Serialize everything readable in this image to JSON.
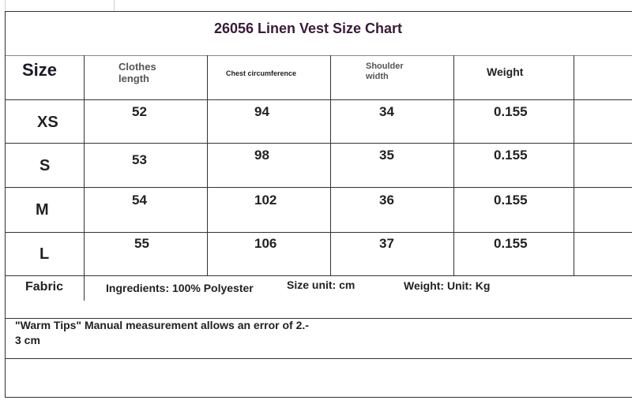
{
  "title": "26056 Linen Vest Size Chart",
  "headers": {
    "size": "Size",
    "clothes_length": "Clothes length",
    "chest": "Chest circumference",
    "shoulder": "Shoulder width",
    "weight": "Weight"
  },
  "rows": [
    {
      "size": "XS",
      "length": "52",
      "chest": "94",
      "shoulder": "34",
      "weight": "0.155"
    },
    {
      "size": "S",
      "length": "53",
      "chest": "98",
      "shoulder": "35",
      "weight": "0.155"
    },
    {
      "size": "M",
      "length": "54",
      "chest": "102",
      "shoulder": "36",
      "weight": "0.155"
    },
    {
      "size": "L",
      "length": "55",
      "chest": "106",
      "shoulder": "37",
      "weight": "0.155"
    }
  ],
  "fabric": {
    "label": "Fabric",
    "ingredients": "Ingredients: 100% Polyester",
    "size_unit": "Size unit: cm",
    "weight_unit": "Weight: Unit: Kg"
  },
  "tips_line1": "\"Warm Tips\" Manual measurement allows an error of 2.-",
  "tips_line2": "3 cm"
}
